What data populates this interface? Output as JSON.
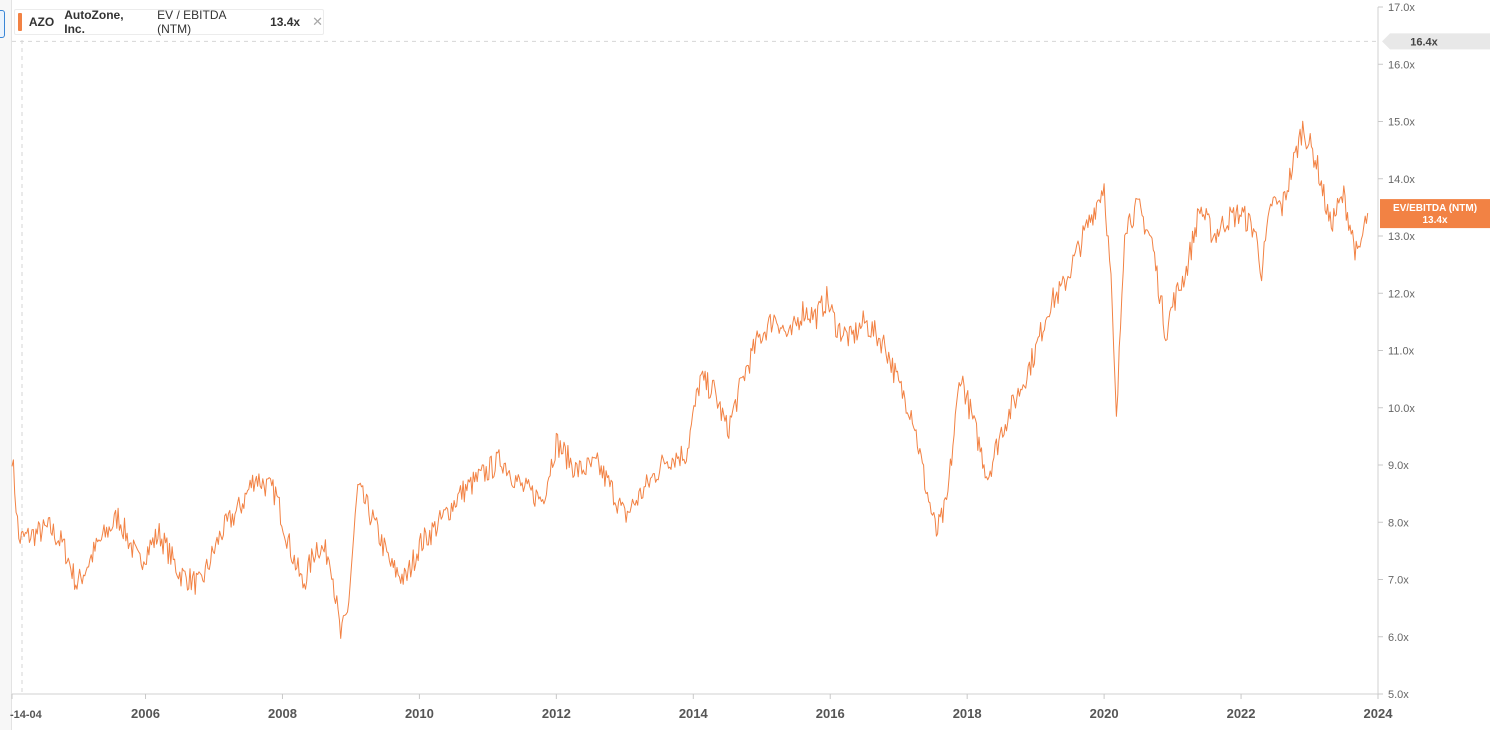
{
  "legend": {
    "ticker": "AZO",
    "company": "AutoZone, Inc.",
    "metric": "EV / EBITDA (NTM)",
    "value": "13.4x",
    "close_icon": "close-icon"
  },
  "badges": {
    "ref_label": "16.4x",
    "current_title": "EV/EBITDA (NTM)",
    "current_value": "13.4x",
    "ref_value": 16.4,
    "current_y": 13.4
  },
  "colors": {
    "series": "#f28244",
    "badge_bg": "#e8e8e8",
    "axis_text": "#666666",
    "grid": "#e6e6e6"
  },
  "chart_data": {
    "type": "line",
    "title": "",
    "xlabel": "",
    "ylabel": "",
    "ylim": [
      5.0,
      17.0
    ],
    "xlim": [
      2004.05,
      2024.0
    ],
    "grid": false,
    "legend": "top-left",
    "x_tick_labels": [
      "-14-04",
      "2006",
      "2008",
      "2010",
      "2012",
      "2014",
      "2016",
      "2018",
      "2020",
      "2022",
      "2024"
    ],
    "x_tick_values": [
      2004.05,
      2006,
      2008,
      2010,
      2012,
      2014,
      2016,
      2018,
      2020,
      2022,
      2024
    ],
    "y_tick_labels": [
      "5.0x",
      "6.0x",
      "7.0x",
      "8.0x",
      "9.0x",
      "10.0x",
      "11.0x",
      "12.0x",
      "13.0x",
      "14.0x",
      "15.0x",
      "16.0x",
      "17.0x"
    ],
    "y_tick_values": [
      5,
      6,
      7,
      8,
      9,
      10,
      11,
      12,
      13,
      14,
      15,
      16,
      17
    ],
    "series": [
      {
        "name": "EV / EBITDA (NTM)",
        "x": [
          2004.05,
          2004.15,
          2004.4,
          2004.6,
          2004.8,
          2005.0,
          2005.3,
          2005.6,
          2005.9,
          2006.2,
          2006.5,
          2006.8,
          2007.1,
          2007.4,
          2007.6,
          2007.9,
          2008.1,
          2008.3,
          2008.5,
          2008.7,
          2008.85,
          2008.95,
          2009.1,
          2009.3,
          2009.6,
          2009.8,
          2010.0,
          2010.3,
          2010.6,
          2010.9,
          2011.2,
          2011.5,
          2011.8,
          2012.0,
          2012.3,
          2012.6,
          2012.8,
          2013.0,
          2013.3,
          2013.6,
          2013.9,
          2014.1,
          2014.3,
          2014.5,
          2014.75,
          2014.95,
          2015.2,
          2015.4,
          2015.6,
          2015.8,
          2015.95,
          2016.1,
          2016.3,
          2016.5,
          2016.8,
          2017.0,
          2017.2,
          2017.4,
          2017.55,
          2017.7,
          2017.9,
          2018.1,
          2018.3,
          2018.5,
          2018.8,
          2019.0,
          2019.2,
          2019.4,
          2019.6,
          2019.8,
          2020.0,
          2020.1,
          2020.18,
          2020.3,
          2020.5,
          2020.7,
          2020.9,
          2021.0,
          2021.2,
          2021.4,
          2021.6,
          2021.8,
          2022.0,
          2022.2,
          2022.3,
          2022.45,
          2022.6,
          2022.75,
          2022.9,
          2023.1,
          2023.3,
          2023.5,
          2023.7,
          2023.85
        ],
        "values": [
          9.2,
          7.7,
          7.8,
          7.9,
          7.6,
          6.9,
          7.6,
          8.1,
          7.3,
          7.8,
          7.1,
          6.9,
          7.8,
          8.3,
          8.8,
          8.5,
          7.6,
          6.9,
          7.6,
          7.4,
          6.0,
          6.4,
          8.6,
          8.1,
          7.2,
          7.0,
          7.6,
          8.0,
          8.5,
          8.8,
          9.1,
          8.6,
          8.4,
          9.4,
          8.9,
          9.0,
          8.6,
          8.1,
          8.6,
          9.1,
          9.2,
          10.5,
          10.3,
          9.6,
          10.6,
          11.2,
          11.6,
          11.2,
          11.7,
          11.6,
          11.9,
          11.4,
          11.2,
          11.5,
          11.1,
          10.4,
          9.9,
          8.6,
          7.8,
          8.3,
          10.6,
          9.7,
          8.8,
          9.6,
          10.4,
          11.0,
          11.8,
          12.1,
          12.7,
          13.3,
          13.9,
          12.2,
          9.7,
          13.2,
          13.5,
          12.9,
          11.3,
          11.8,
          12.4,
          13.5,
          13.0,
          13.3,
          13.4,
          13.1,
          12.4,
          13.6,
          13.5,
          14.2,
          14.9,
          14.3,
          13.2,
          13.7,
          12.6,
          13.4
        ]
      }
    ]
  }
}
